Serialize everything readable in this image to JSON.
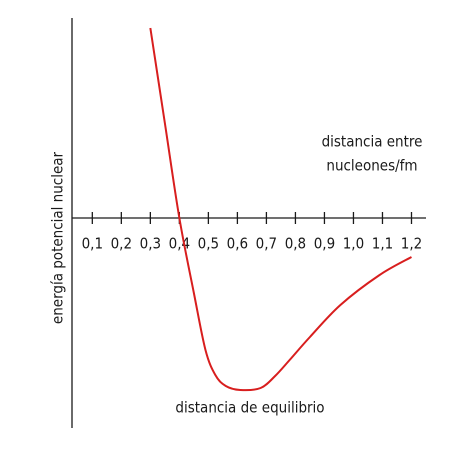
{
  "chart_data": {
    "type": "line",
    "y_label": "energía potencial nuclear",
    "x_label": [
      "distancia entre",
      "nucleones/fm"
    ],
    "annotation": "distancia de equilibrio",
    "series": [
      {
        "color": "#d81e1e",
        "x": [
          0.3,
          0.35,
          0.4,
          0.45,
          0.49,
          0.524,
          0.56,
          0.61,
          0.68,
          0.73,
          0.78,
          0.85,
          0.955,
          1.09,
          1.2
        ],
        "values": [
          19,
          9.5,
          0,
          -7.5,
          -13.2,
          -15.7,
          -16.8,
          -17.2,
          -17,
          -15.8,
          -14.2,
          -11.9,
          -8.7,
          -5.7,
          -3.9
        ]
      }
    ],
    "xlim": [
      0.03,
      1.25
    ],
    "ylim": [
      -21,
      20
    ],
    "xticks": [
      {
        "value": 0.1,
        "label": "0,1"
      },
      {
        "value": 0.2,
        "label": "0,2"
      },
      {
        "value": 0.3,
        "label": "0,3"
      },
      {
        "value": 0.4,
        "label": "0,4"
      },
      {
        "value": 0.5,
        "label": "0,5"
      },
      {
        "value": 0.6,
        "label": "0,6"
      },
      {
        "value": 0.7,
        "label": "0,7"
      },
      {
        "value": 0.8,
        "label": "0,8"
      },
      {
        "value": 0.9,
        "label": "0,9"
      },
      {
        "value": 1.0,
        "label": "1,0"
      },
      {
        "value": 1.1,
        "label": "1,1"
      },
      {
        "value": 1.2,
        "label": "1,2"
      }
    ]
  }
}
